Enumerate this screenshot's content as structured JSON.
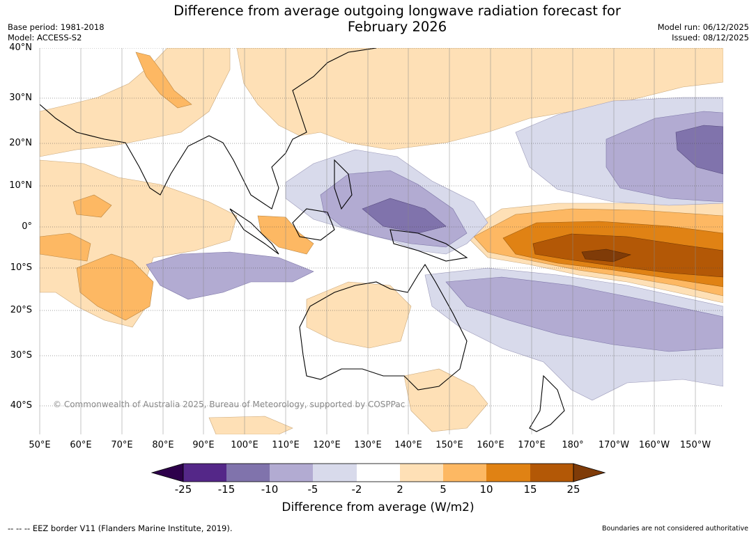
{
  "title": {
    "line1": "Difference from average outgoing longwave radiation forecast for",
    "line2": "February 2026"
  },
  "meta_left": {
    "base_period": "Base period: 1981-2018",
    "model": "Model: ACCESS-S2"
  },
  "meta_right": {
    "model_run": "Model run: 06/12/2025",
    "issued": "Issued: 08/12/2025"
  },
  "map": {
    "latitude_labels": [
      "40°N",
      "30°N",
      "20°N",
      "10°N",
      "0°",
      "10°S",
      "20°S",
      "30°S",
      "40°S"
    ],
    "longitude_labels": [
      "50°E",
      "60°E",
      "70°E",
      "80°E",
      "90°E",
      "100°E",
      "110°E",
      "120°E",
      "130°E",
      "140°E",
      "150°E",
      "160°E",
      "170°E",
      "180°",
      "170°W",
      "160°W",
      "150°W"
    ],
    "copyright": "© Commonwealth of Australia 2025, Bureau of Meteorology, supported by COSPPac"
  },
  "colorbar": {
    "ticks": [
      "-25",
      "-15",
      "-10",
      "-5",
      "-2",
      "2",
      "5",
      "10",
      "15",
      "25"
    ],
    "colors": [
      "#2d004b",
      "#542788",
      "#8073ac",
      "#b2abd2",
      "#d8daeb",
      "#ffffff",
      "#fee0b6",
      "#fdb863",
      "#e08214",
      "#b35806",
      "#7f3b08"
    ],
    "label": "Difference from average (W/m2)"
  },
  "footer": {
    "eez": "--  --  -- EEZ border V11 (Flanders Marine Institute, 2019).",
    "disclaimer": "Boundaries are not considered authoritative"
  }
}
